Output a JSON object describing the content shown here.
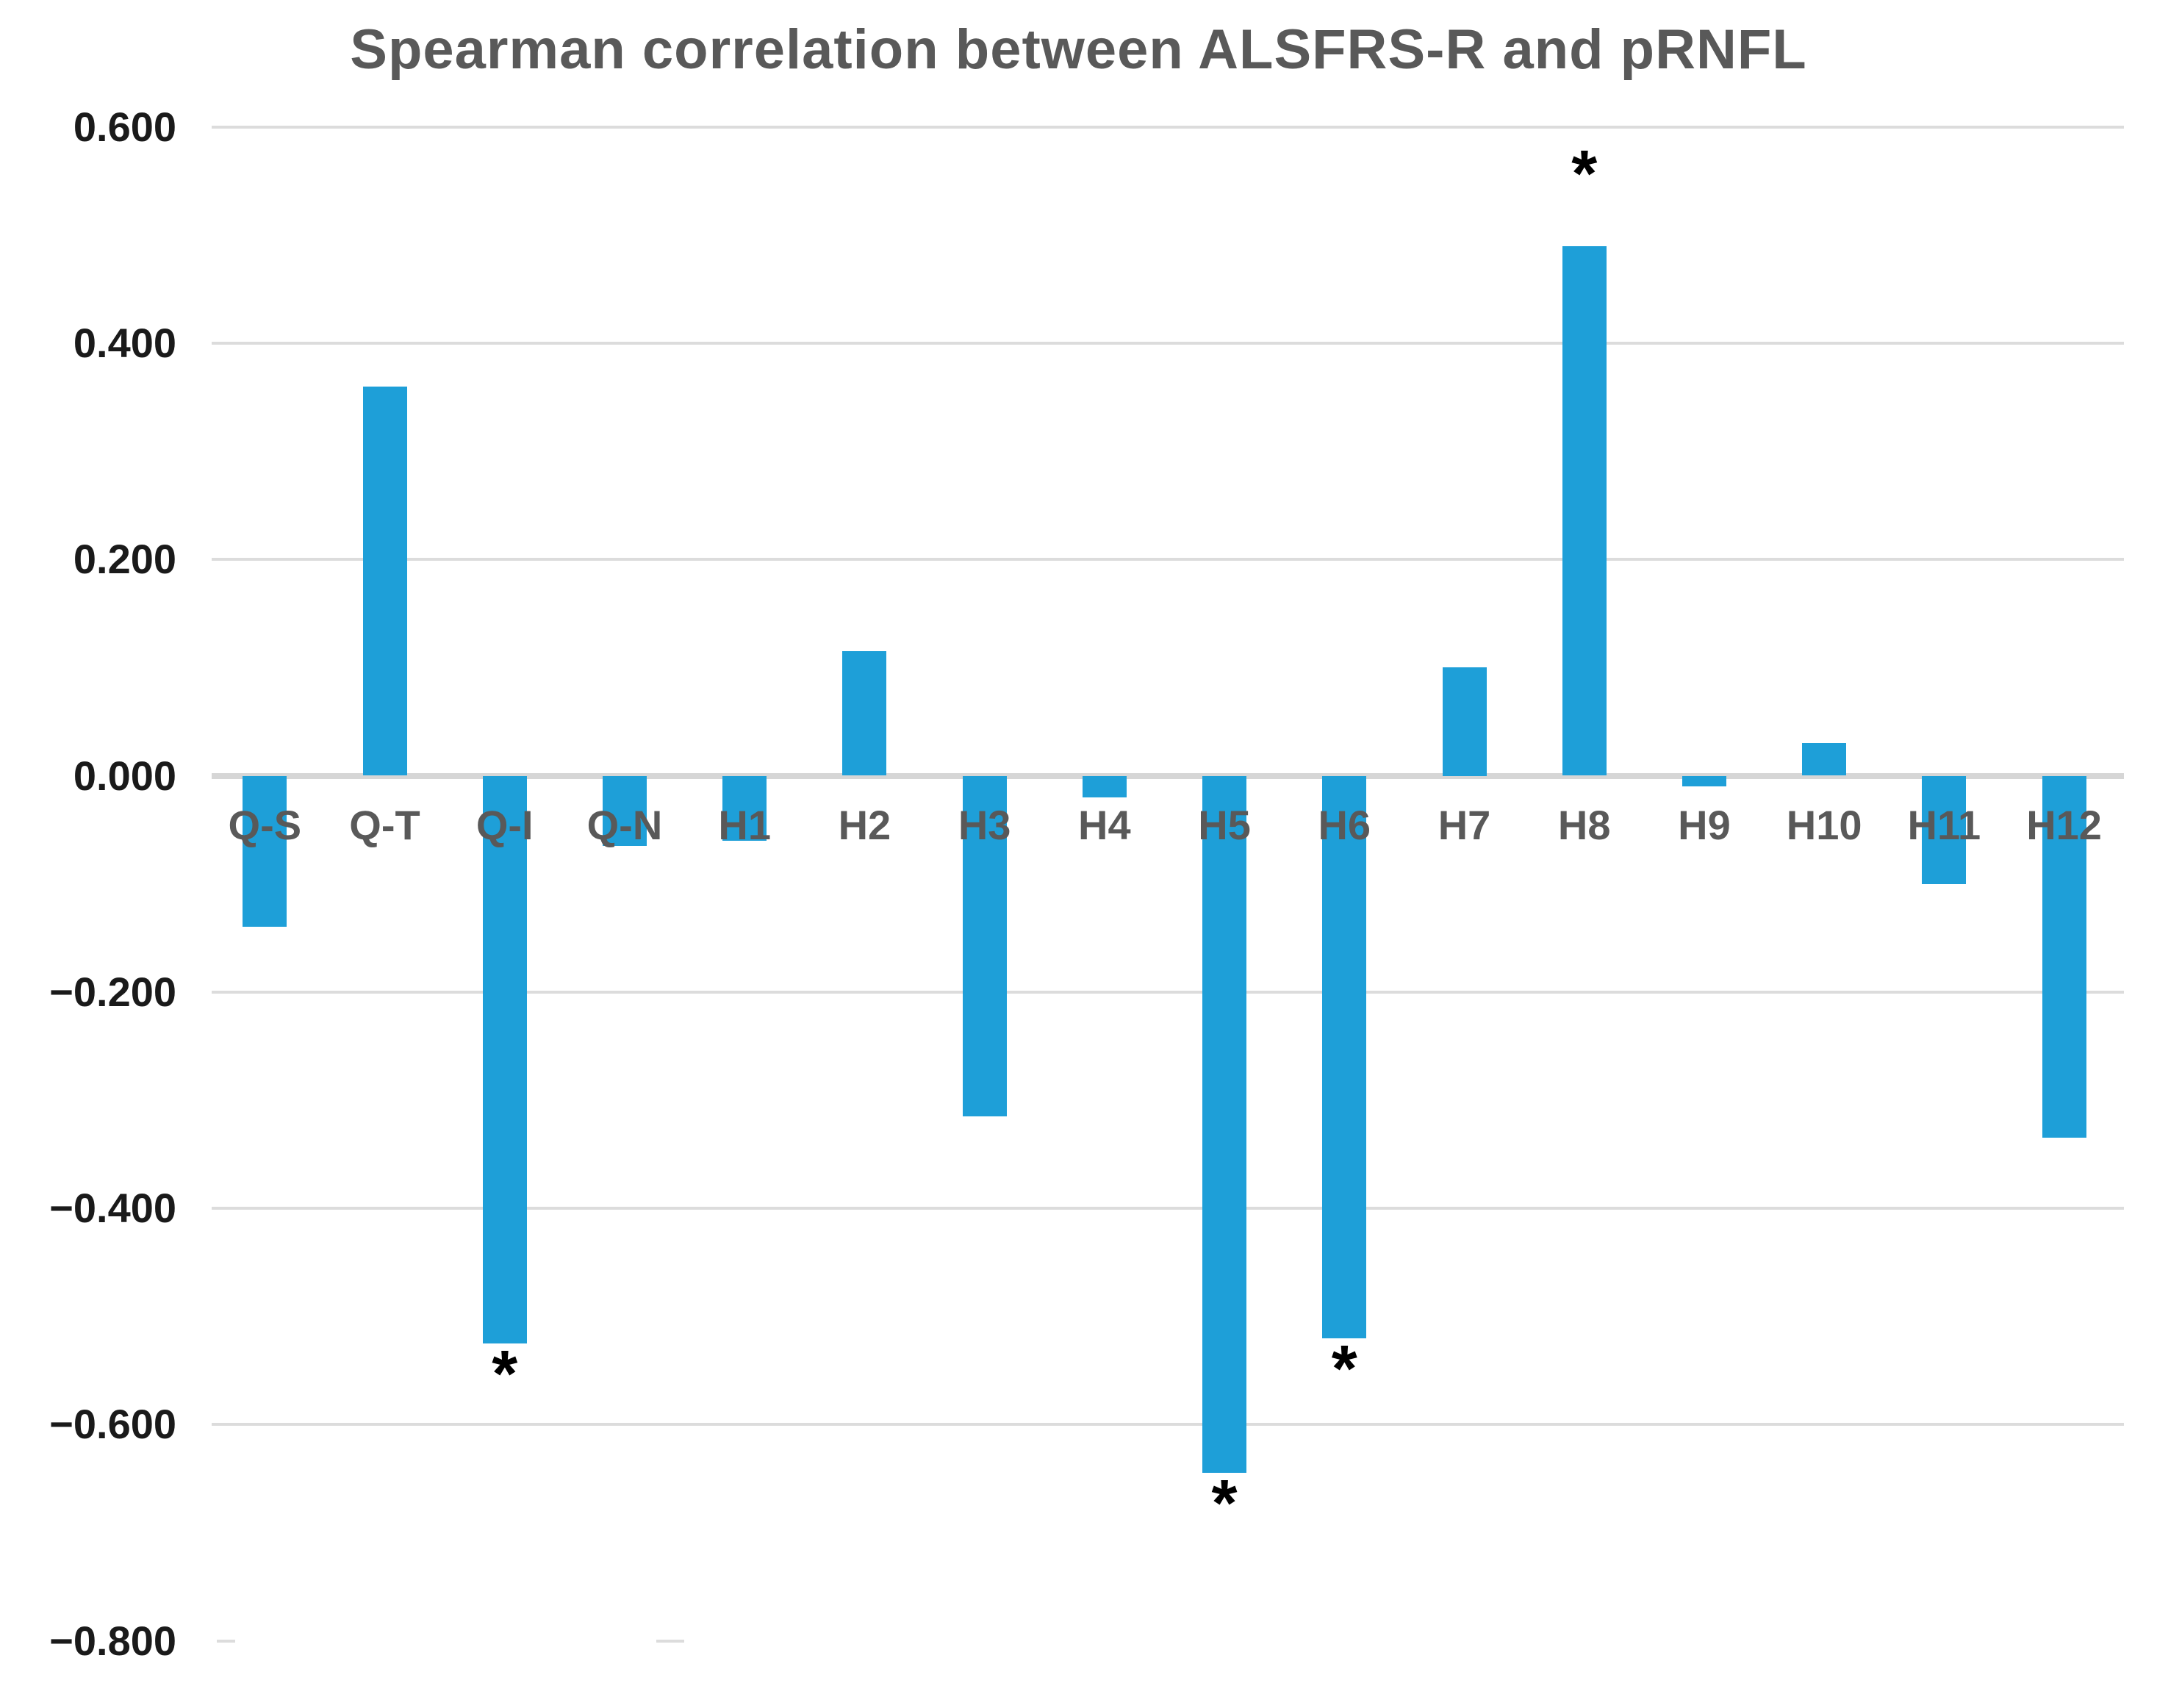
{
  "title": "Spearman correlation between ALSFRS-R and pRNFL",
  "chart_data": {
    "type": "bar",
    "title": "Spearman correlation between ALSFRS-R and pRNFL",
    "categories": [
      "Q-S",
      "Q-T",
      "Q-I",
      "Q-N",
      "H1",
      "H2",
      "H3",
      "H4",
      "H5",
      "H6",
      "H7",
      "H8",
      "H9",
      "H10",
      "H11",
      "H12"
    ],
    "values": [
      -0.14,
      0.36,
      -0.525,
      -0.065,
      -0.06,
      0.115,
      -0.315,
      -0.02,
      -0.645,
      -0.52,
      0.1,
      0.49,
      -0.01,
      0.03,
      -0.1,
      -0.335
    ],
    "significant_categories": [
      "Q-I",
      "H5",
      "H6",
      "H8"
    ],
    "significance_marker": "*",
    "y_ticks": [
      {
        "value": 0.6,
        "label": "0.600"
      },
      {
        "value": 0.4,
        "label": "0.400"
      },
      {
        "value": 0.2,
        "label": "0.200"
      },
      {
        "value": 0.0,
        "label": "0.000"
      },
      {
        "value": -0.2,
        "label": "−0.200"
      },
      {
        "value": -0.4,
        "label": "−0.400"
      },
      {
        "value": -0.6,
        "label": "−0.600"
      },
      {
        "value": -0.8,
        "label": "−0.800"
      }
    ],
    "ylim": [
      -0.8,
      0.6
    ],
    "xlabel": "",
    "ylabel": "",
    "legend": "none",
    "grid": "horizontal",
    "baseline_partial_gridline": {
      "value": -0.8,
      "segments_x": [
        [
          295,
          320
        ],
        [
          893,
          931
        ]
      ]
    },
    "colors": {
      "bar": "#1E9FD8",
      "gridline": "#DCDCDC",
      "zero_line": "#D6D6D6",
      "title_text": "#595959",
      "category_label": "#595959",
      "tick_label": "#1A1A1A",
      "asterisk": "#000000",
      "background": "#FFFFFF"
    }
  }
}
